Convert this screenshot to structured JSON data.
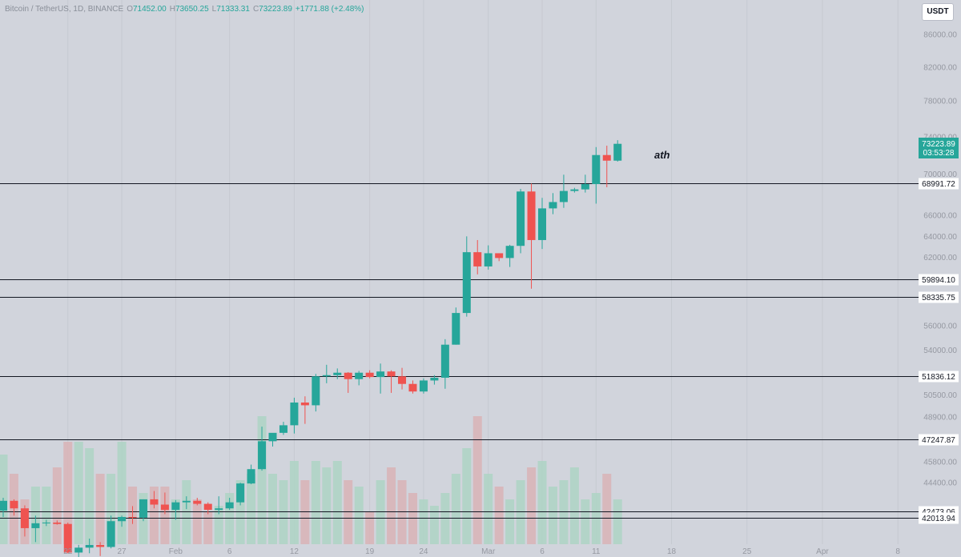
{
  "header": {
    "symbol": "Bitcoin / TetherUS, 1D, BINANCE",
    "o_label": "O",
    "o_value": "71452.00",
    "h_label": "H",
    "h_value": "73650.25",
    "l_label": "L",
    "l_value": "71333.31",
    "c_label": "C",
    "c_value": "73223.89",
    "change": "+1771.88 (+2.48%)"
  },
  "currency_button": "USDT",
  "annotation": "ath",
  "colors": {
    "up": "#26a69a",
    "down": "#ef5350",
    "background": "#d1d4dc",
    "line": "#131722"
  },
  "chart_data": {
    "type": "candlestick",
    "title": "Bitcoin / TetherUS, 1D, BINANCE",
    "x_start": "2024-01-16",
    "x_tick_labels": [
      {
        "date": "2024-01-22",
        "label": "22"
      },
      {
        "date": "2024-01-27",
        "label": "27"
      },
      {
        "date": "2024-02-01",
        "label": "Feb"
      },
      {
        "date": "2024-02-06",
        "label": "6"
      },
      {
        "date": "2024-02-12",
        "label": "12"
      },
      {
        "date": "2024-02-19",
        "label": "19"
      },
      {
        "date": "2024-02-24",
        "label": "24"
      },
      {
        "date": "2024-03-01",
        "label": "Mar"
      },
      {
        "date": "2024-03-06",
        "label": "6"
      },
      {
        "date": "2024-03-11",
        "label": "11"
      },
      {
        "date": "2024-03-18",
        "label": "18"
      },
      {
        "date": "2024-03-25",
        "label": "25"
      },
      {
        "date": "2024-04-01",
        "label": "Apr"
      },
      {
        "date": "2024-04-08",
        "label": "8"
      }
    ],
    "y_tick_labels": [
      "86000.00",
      "82000.00",
      "78000.00",
      "74000.00",
      "70000.00",
      "66000.00",
      "64000.00",
      "62000.00",
      "56000.00",
      "54000.00",
      "50500.00",
      "48900.00",
      "45800.00",
      "44400.00"
    ],
    "horizontal_levels": [
      "68991.72",
      "59894.10",
      "58335.75",
      "51836.12",
      "47247.87",
      "42473.06",
      "42013.94"
    ],
    "last_price": "73223.89",
    "countdown": "03:53:28",
    "candles": [
      {
        "date": "2024-01-16",
        "o": 42550,
        "h": 43400,
        "l": 42100,
        "c": 43200
      },
      {
        "date": "2024-01-17",
        "o": 43200,
        "h": 43300,
        "l": 42200,
        "c": 42700
      },
      {
        "date": "2024-01-18",
        "o": 42700,
        "h": 42900,
        "l": 40700,
        "c": 41300
      },
      {
        "date": "2024-01-19",
        "o": 41300,
        "h": 42200,
        "l": 40300,
        "c": 41650
      },
      {
        "date": "2024-01-20",
        "o": 41650,
        "h": 41900,
        "l": 41450,
        "c": 41700
      },
      {
        "date": "2024-01-21",
        "o": 41700,
        "h": 41850,
        "l": 41550,
        "c": 41600
      },
      {
        "date": "2024-01-22",
        "o": 41600,
        "h": 41700,
        "l": 39500,
        "c": 39550
      },
      {
        "date": "2024-01-23",
        "o": 39550,
        "h": 40100,
        "l": 38600,
        "c": 39900
      },
      {
        "date": "2024-01-24",
        "o": 39900,
        "h": 40550,
        "l": 39500,
        "c": 40100
      },
      {
        "date": "2024-01-25",
        "o": 40100,
        "h": 40300,
        "l": 39300,
        "c": 39950
      },
      {
        "date": "2024-01-26",
        "o": 39950,
        "h": 42200,
        "l": 39850,
        "c": 41800
      },
      {
        "date": "2024-01-27",
        "o": 41800,
        "h": 42200,
        "l": 41400,
        "c": 42100
      },
      {
        "date": "2024-01-28",
        "o": 42100,
        "h": 42850,
        "l": 41600,
        "c": 42050
      },
      {
        "date": "2024-01-29",
        "o": 42050,
        "h": 43300,
        "l": 41800,
        "c": 43300
      },
      {
        "date": "2024-01-30",
        "o": 43300,
        "h": 43850,
        "l": 42700,
        "c": 42950
      },
      {
        "date": "2024-01-31",
        "o": 42950,
        "h": 43750,
        "l": 42300,
        "c": 42600
      },
      {
        "date": "2024-02-01",
        "o": 42600,
        "h": 43250,
        "l": 41900,
        "c": 43100
      },
      {
        "date": "2024-02-02",
        "o": 43100,
        "h": 43500,
        "l": 42650,
        "c": 43200
      },
      {
        "date": "2024-02-03",
        "o": 43200,
        "h": 43400,
        "l": 42900,
        "c": 43000
      },
      {
        "date": "2024-02-04",
        "o": 43000,
        "h": 43100,
        "l": 42300,
        "c": 42600
      },
      {
        "date": "2024-02-05",
        "o": 42600,
        "h": 43500,
        "l": 42300,
        "c": 42700
      },
      {
        "date": "2024-02-06",
        "o": 42700,
        "h": 43400,
        "l": 42600,
        "c": 43100
      },
      {
        "date": "2024-02-07",
        "o": 43100,
        "h": 44400,
        "l": 42900,
        "c": 44350
      },
      {
        "date": "2024-02-08",
        "o": 44350,
        "h": 45600,
        "l": 44300,
        "c": 45300
      },
      {
        "date": "2024-02-09",
        "o": 45300,
        "h": 48200,
        "l": 45200,
        "c": 47150
      },
      {
        "date": "2024-02-10",
        "o": 47150,
        "h": 47700,
        "l": 46800,
        "c": 47750
      },
      {
        "date": "2024-02-11",
        "o": 47750,
        "h": 48550,
        "l": 47600,
        "c": 48300
      },
      {
        "date": "2024-02-12",
        "o": 48300,
        "h": 50300,
        "l": 47700,
        "c": 49950
      },
      {
        "date": "2024-02-13",
        "o": 49950,
        "h": 50400,
        "l": 48400,
        "c": 49750
      },
      {
        "date": "2024-02-14",
        "o": 49750,
        "h": 52050,
        "l": 49300,
        "c": 51850
      },
      {
        "date": "2024-02-15",
        "o": 51850,
        "h": 52800,
        "l": 51350,
        "c": 51950
      },
      {
        "date": "2024-02-16",
        "o": 51950,
        "h": 52500,
        "l": 51650,
        "c": 52150
      },
      {
        "date": "2024-02-17",
        "o": 52150,
        "h": 52200,
        "l": 50650,
        "c": 51650
      },
      {
        "date": "2024-02-18",
        "o": 51650,
        "h": 52300,
        "l": 51200,
        "c": 52150
      },
      {
        "date": "2024-02-19",
        "o": 52150,
        "h": 52350,
        "l": 51700,
        "c": 51800
      },
      {
        "date": "2024-02-20",
        "o": 51800,
        "h": 52900,
        "l": 50600,
        "c": 52250
      },
      {
        "date": "2024-02-21",
        "o": 52250,
        "h": 52350,
        "l": 50650,
        "c": 51850
      },
      {
        "date": "2024-02-22",
        "o": 51850,
        "h": 52550,
        "l": 50900,
        "c": 51300
      },
      {
        "date": "2024-02-23",
        "o": 51300,
        "h": 51550,
        "l": 50600,
        "c": 50750
      },
      {
        "date": "2024-02-24",
        "o": 50750,
        "h": 51700,
        "l": 50600,
        "c": 51550
      },
      {
        "date": "2024-02-25",
        "o": 51550,
        "h": 51950,
        "l": 51250,
        "c": 51750
      },
      {
        "date": "2024-02-26",
        "o": 51750,
        "h": 54900,
        "l": 50950,
        "c": 54450
      },
      {
        "date": "2024-02-27",
        "o": 54450,
        "h": 57500,
        "l": 54450,
        "c": 57050
      },
      {
        "date": "2024-02-28",
        "o": 57050,
        "h": 64000,
        "l": 56750,
        "c": 62500
      },
      {
        "date": "2024-02-29",
        "o": 62500,
        "h": 63650,
        "l": 60400,
        "c": 61150
      },
      {
        "date": "2024-03-01",
        "o": 61150,
        "h": 63150,
        "l": 60850,
        "c": 62400
      },
      {
        "date": "2024-03-02",
        "o": 62400,
        "h": 62400,
        "l": 61650,
        "c": 61950
      },
      {
        "date": "2024-03-03",
        "o": 61950,
        "h": 63200,
        "l": 61100,
        "c": 63100
      },
      {
        "date": "2024-03-04",
        "o": 63100,
        "h": 68500,
        "l": 62400,
        "c": 68250
      },
      {
        "date": "2024-03-05",
        "o": 68250,
        "h": 69000,
        "l": 59100,
        "c": 63650
      },
      {
        "date": "2024-03-06",
        "o": 63650,
        "h": 67650,
        "l": 62800,
        "c": 66650
      },
      {
        "date": "2024-03-07",
        "o": 66650,
        "h": 68100,
        "l": 66100,
        "c": 67250
      },
      {
        "date": "2024-03-08",
        "o": 67250,
        "h": 69950,
        "l": 66700,
        "c": 68300
      },
      {
        "date": "2024-03-09",
        "o": 68300,
        "h": 68600,
        "l": 68150,
        "c": 68450
      },
      {
        "date": "2024-03-10",
        "o": 68450,
        "h": 69950,
        "l": 68150,
        "c": 68950
      },
      {
        "date": "2024-03-11",
        "o": 68950,
        "h": 72900,
        "l": 67100,
        "c": 72050
      },
      {
        "date": "2024-03-12",
        "o": 72050,
        "h": 73050,
        "l": 68650,
        "c": 71450
      },
      {
        "date": "2024-03-13",
        "o": 71450,
        "h": 73650,
        "l": 71350,
        "c": 73250
      }
    ],
    "volume": [
      14,
      11,
      7,
      9,
      9,
      12,
      16,
      16,
      15,
      11,
      11,
      16,
      9,
      8,
      9,
      9,
      7,
      10,
      7,
      5,
      6,
      8,
      10,
      11,
      20,
      11,
      10,
      13,
      10,
      13,
      12,
      13,
      10,
      9,
      5,
      10,
      12,
      10,
      8,
      7,
      6,
      8,
      11,
      15,
      20,
      11,
      9,
      7,
      10,
      12,
      13,
      9,
      10,
      12,
      7,
      8,
      11,
      7
    ]
  }
}
